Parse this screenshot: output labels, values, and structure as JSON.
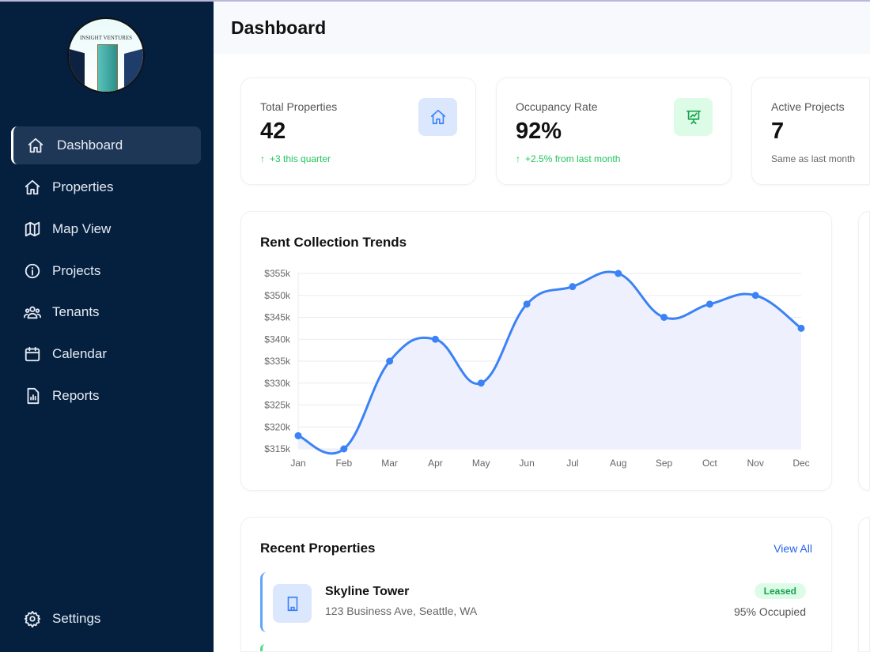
{
  "logo": {
    "text": "INSIGHT VENTURES"
  },
  "sidebar": {
    "items": [
      {
        "label": "Dashboard",
        "icon": "home-icon",
        "active": true
      },
      {
        "label": "Properties",
        "icon": "home-icon"
      },
      {
        "label": "Map View",
        "icon": "map-icon"
      },
      {
        "label": "Projects",
        "icon": "info-icon"
      },
      {
        "label": "Tenants",
        "icon": "users-icon"
      },
      {
        "label": "Calendar",
        "icon": "calendar-icon"
      },
      {
        "label": "Reports",
        "icon": "report-icon"
      }
    ],
    "settings": {
      "label": "Settings",
      "icon": "gear-icon"
    }
  },
  "header": {
    "title": "Dashboard"
  },
  "stats": [
    {
      "label": "Total Properties",
      "value": "42",
      "sub": "+3 this quarter",
      "icon": "home-icon"
    },
    {
      "label": "Occupancy Rate",
      "value": "92%",
      "sub": "+2.5% from last month",
      "icon": "presentation-chart-icon"
    },
    {
      "label": "Active Projects",
      "value": "7",
      "sub": "Same as last month"
    }
  ],
  "chart_data": {
    "type": "area",
    "title": "Rent Collection Trends",
    "categories": [
      "Jan",
      "Feb",
      "Mar",
      "Apr",
      "May",
      "Jun",
      "Jul",
      "Aug",
      "Sep",
      "Oct",
      "Nov",
      "Dec"
    ],
    "values": [
      318000,
      315000,
      335000,
      340000,
      330000,
      348000,
      352000,
      355000,
      345000,
      348000,
      350000,
      342500
    ],
    "ylim": [
      315000,
      355000
    ],
    "yticks": [
      "$315k",
      "$320k",
      "$325k",
      "$330k",
      "$335k",
      "$340k",
      "$345k",
      "$350k",
      "$355k"
    ],
    "grid": true,
    "color": "#3b82f6",
    "fill": "#eef1fd"
  },
  "recent": {
    "title": "Recent Properties",
    "view_all": "View All",
    "items": [
      {
        "name": "Skyline Tower",
        "address": "123 Business Ave, Seattle, WA",
        "status": "Leased",
        "occupancy": "95% Occupied"
      }
    ]
  },
  "colors": {
    "sidebar": "#05203f",
    "accent": "#3b82f6",
    "success": "#22c55e"
  }
}
